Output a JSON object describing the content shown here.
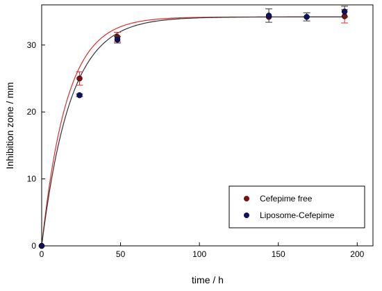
{
  "chart_data": {
    "type": "scatter",
    "title": "",
    "xlabel": "time / h",
    "ylabel": "Inhibition zone / mm",
    "xlim": [
      0,
      210
    ],
    "ylim": [
      0,
      36
    ],
    "xticks": [
      0,
      50,
      100,
      150,
      200
    ],
    "yticks": [
      0,
      10,
      20,
      30
    ],
    "grid": false,
    "legend_position": "bottom-right",
    "series": [
      {
        "name": "Cefepime free",
        "marker_color": "#7a1010",
        "curve_color": "#e8282c",
        "points": [
          {
            "x": 0,
            "y": 0,
            "err": 0
          },
          {
            "x": 24,
            "y": 25.0,
            "err": 1.0
          },
          {
            "x": 48,
            "y": 31.2,
            "err": 0.7
          },
          {
            "x": 144,
            "y": 34.2,
            "err": 0
          },
          {
            "x": 192,
            "y": 34.3,
            "err": 1.0
          }
        ],
        "fit": {
          "model": "exponential rise",
          "plateau": 34.2,
          "rate": 0.063
        }
      },
      {
        "name": "Liposome-Cefepime",
        "marker_color": "#101060",
        "curve_color": "#333333",
        "points": [
          {
            "x": 0,
            "y": 0,
            "err": 0
          },
          {
            "x": 24,
            "y": 22.5,
            "err": 0.2
          },
          {
            "x": 48,
            "y": 30.8,
            "err": 0.5
          },
          {
            "x": 144,
            "y": 34.4,
            "err": 1.0
          },
          {
            "x": 168,
            "y": 34.2,
            "err": 0.6
          },
          {
            "x": 192,
            "y": 35.0,
            "err": 0.8
          }
        ],
        "fit": {
          "model": "exponential rise",
          "plateau": 34.2,
          "rate": 0.055
        }
      }
    ]
  }
}
